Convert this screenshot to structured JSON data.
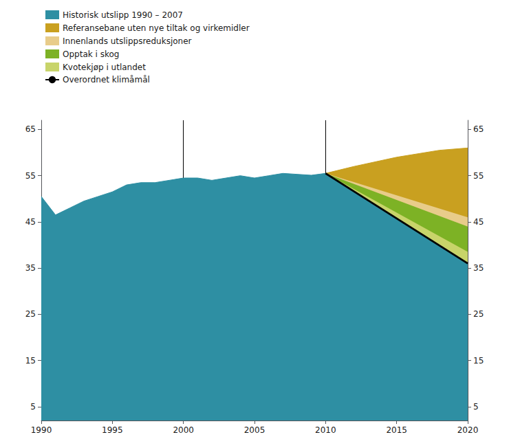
{
  "chart_data": {
    "type": "area",
    "series": [
      {
        "name": "Historisk utslipp 1990 – 2007",
        "type": "area",
        "color": "#2e8fa3",
        "x": [
          1990,
          1991,
          1992,
          1993,
          1994,
          1995,
          1996,
          1997,
          1998,
          1999,
          2000,
          2001,
          2002,
          2003,
          2004,
          2005,
          2006,
          2007,
          2008,
          2009,
          2010,
          2020
        ],
        "values": [
          50.5,
          46.5,
          48.0,
          49.5,
          50.5,
          51.5,
          53.0,
          53.5,
          53.5,
          54.0,
          54.5,
          54.5,
          54.0,
          54.5,
          55.0,
          54.5,
          55.0,
          55.5,
          55.3,
          55.1,
          55.5,
          36.0
        ]
      },
      {
        "name": "Referansebane uten nye tiltak og virkemidler",
        "type": "area",
        "color": "#c9a020",
        "x": [
          2010,
          2012,
          2015,
          2018,
          2020
        ],
        "values": [
          55.5,
          57.0,
          59.0,
          60.5,
          61.0
        ]
      },
      {
        "name": "Innenlands utslippsreduksjoner",
        "type": "area",
        "color": "#e8cc8a",
        "x": [
          2010,
          2020
        ],
        "values": [
          55.5,
          46.0
        ]
      },
      {
        "name": "Opptak i skog",
        "type": "area",
        "color": "#7db225",
        "x": [
          2010,
          2020
        ],
        "values": [
          55.5,
          44.0
        ]
      },
      {
        "name": "Kvotekjøp i utlandet",
        "type": "area",
        "color": "#c8d46a",
        "x": [
          2010,
          2020
        ],
        "values": [
          55.5,
          38.5
        ]
      },
      {
        "name": "Overordnet klimåmål",
        "type": "line",
        "color": "#000000",
        "x": [
          2010,
          2020
        ],
        "values": [
          55.5,
          36.0
        ]
      }
    ],
    "vlines": [
      2000,
      2010
    ],
    "xlim": [
      1990,
      2020
    ],
    "xticks": [
      1990,
      1995,
      2000,
      2005,
      2010,
      2015,
      2020
    ],
    "ylim": [
      2,
      67
    ],
    "yticks": [
      5,
      15,
      25,
      35,
      45,
      55,
      65
    ],
    "y2lim": [
      2,
      67
    ],
    "y2ticks": [
      5,
      15,
      25,
      35,
      45,
      55,
      65
    ],
    "grid": false,
    "legend": "top"
  }
}
